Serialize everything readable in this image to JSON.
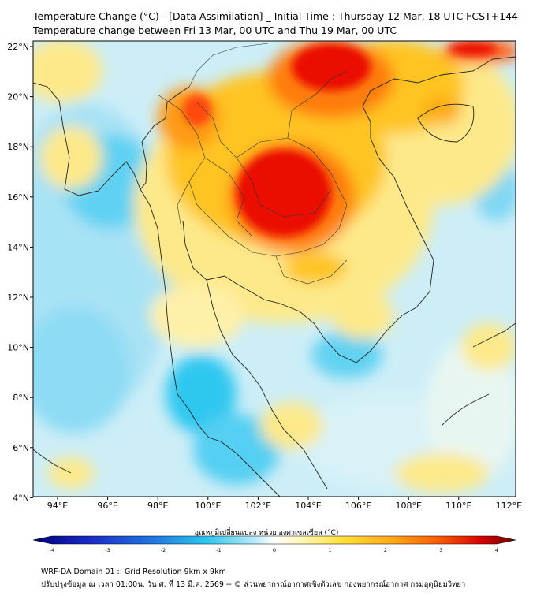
{
  "header": {
    "title_line1": "Temperature Change (°C) - [Data Assimilation] _ Initial Time : Thursday 12 Mar, 18 UTC FCST+144",
    "title_line2": "Temperature change between Fri 13 Mar, 00 UTC and Thu 19 Mar, 00 UTC"
  },
  "map": {
    "lat_labels": [
      "22°N",
      "20°N",
      "18°N",
      "16°N",
      "14°N",
      "12°N",
      "10°N",
      "8°N",
      "6°N",
      "4°N"
    ],
    "lon_labels": [
      "94°E",
      "96°E",
      "98°E",
      "100°E",
      "102°E",
      "104°E",
      "106°E",
      "108°E",
      "110°E",
      "112°E"
    ],
    "colors": {
      "cold": "#2ec7f0",
      "cool": "#a8e2f5",
      "neutral": "#f5f5e8",
      "warm_light": "#fde98a",
      "warm": "#ffc422",
      "hot": "#ff7b10",
      "very_hot": "#ea1000",
      "coast": "#222222"
    }
  },
  "colorbar": {
    "title": "อุณหภูมิเปลี่ยนแปลง หน่วย องศาเซลเซียส (°C)",
    "ticks": [
      "-4",
      "-3",
      "-2",
      "-1",
      "0",
      "1",
      "2",
      "3",
      "4"
    ],
    "min": -4,
    "max": 4
  },
  "footer": {
    "line1": "WRF-DA Domain 01 :: Grid Resolution 9km x 9km",
    "line2": "ปรับปรุงข้อมูล ณ เวลา 01:00น. วัน ศ. ที่ 13 มี.ค. 2569 -- © ส่วนพยากรณ์อากาศเชิงตัวเลข กองพยากรณ์อากาศ กรมอุตุนิยมวิทยา"
  }
}
